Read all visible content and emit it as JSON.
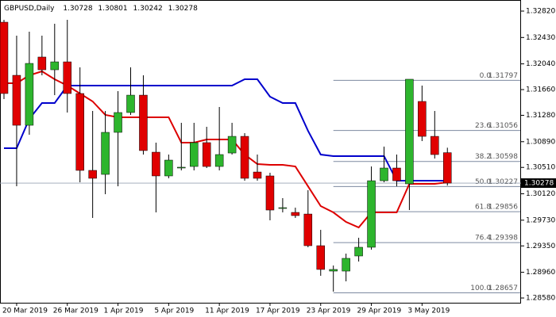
{
  "chart_data": {
    "type": "candlestick",
    "title": "GBPUSD,Daily",
    "categories": [
      null,
      "20 Mar 2019",
      null,
      null,
      null,
      "26 Mar 2019",
      null,
      null,
      null,
      "1 Apr 2019",
      null,
      null,
      null,
      "5 Apr 2019",
      null,
      null,
      null,
      "11 Apr 2019",
      null,
      null,
      null,
      "17 Apr 2019",
      null,
      null,
      null,
      "23 Apr 2019",
      null,
      null,
      null,
      "29 Apr 2019",
      null,
      null,
      null,
      "3 May 2019",
      null,
      null
    ],
    "open": [
      1.32656,
      1.31871,
      1.31133,
      1.32141,
      1.31953,
      1.3207,
      1.31602,
      1.30466,
      1.30407,
      1.31028,
      1.31321,
      1.31578,
      1.30735,
      1.30384,
      1.30501,
      1.30524,
      1.30876,
      1.30524,
      1.30723,
      1.30969,
      1.30442,
      1.30384,
      1.29904,
      1.29845,
      1.29821,
      1.29353,
      1.28978,
      1.28978,
      1.29201,
      1.2933,
      1.30313,
      1.30501,
      1.30267,
      1.31485,
      1.30969,
      1.30728
    ],
    "high": [
      1.32691,
      1.32457,
      1.32515,
      1.32457,
      1.32633,
      1.32691,
      1.31988,
      1.31344,
      1.31344,
      1.31637,
      1.31988,
      1.31871,
      1.30876,
      1.307,
      1.31169,
      1.31169,
      1.3111,
      1.31403,
      1.31169,
      1.31016,
      1.307,
      1.30431,
      1.30056,
      1.29915,
      1.30173,
      1.29587,
      1.2906,
      1.29236,
      1.2947,
      1.30524,
      1.30817,
      1.307,
      1.31813,
      1.31719,
      1.31344,
      1.30801
    ],
    "low": [
      1.3152,
      1.30231,
      1.30993,
      1.31871,
      1.31578,
      1.31321,
      1.3029,
      1.29763,
      1.30114,
      1.30231,
      1.31286,
      1.307,
      1.29845,
      1.30349,
      1.30466,
      1.30466,
      1.30501,
      1.30466,
      1.307,
      1.30313,
      1.30313,
      1.29728,
      1.29845,
      1.29763,
      1.2933,
      1.28908,
      1.28674,
      1.28826,
      1.29119,
      1.29294,
      1.3029,
      1.30231,
      1.2988,
      1.30899,
      1.30641,
      1.30242
    ],
    "close": [
      1.31602,
      1.31133,
      1.32047,
      1.31953,
      1.3207,
      1.31602,
      1.30466,
      1.30349,
      1.31028,
      1.31321,
      1.31578,
      1.30759,
      1.30384,
      1.30618,
      1.30513,
      1.30876,
      1.30524,
      1.307,
      1.30969,
      1.30349,
      1.30349,
      1.2988,
      1.29915,
      1.29798,
      1.29353,
      1.29002,
      1.29002,
      1.29166,
      1.2933,
      1.30313,
      1.30501,
      1.30313,
      1.31813,
      1.30969,
      1.307,
      1.30278
    ],
    "up_color": "#2db52d",
    "down_color": "#e00000",
    "lines": [
      {
        "color": "#0000cc",
        "values": [
          1.30794,
          1.30794,
          1.31227,
          1.31461,
          1.31461,
          1.31719,
          1.31719,
          1.31719,
          1.31719,
          1.31719,
          1.31719,
          1.31719,
          1.31719,
          1.31719,
          1.31719,
          1.31719,
          1.31719,
          1.31719,
          1.31719,
          1.31813,
          1.31813,
          1.31555,
          1.31461,
          1.31461,
          1.31051,
          1.307,
          1.30677,
          1.30677,
          1.30677,
          1.30677,
          1.30677,
          1.30313,
          1.30313,
          1.30313,
          1.30313,
          1.30313
        ]
      },
      {
        "color": "#dd0000",
        "values": [
          1.31754,
          1.31754,
          1.31871,
          1.3193,
          1.31813,
          1.31719,
          1.31602,
          1.31485,
          1.31286,
          1.31251,
          1.31251,
          1.31251,
          1.31251,
          1.31251,
          1.30876,
          1.30876,
          1.30923,
          1.30923,
          1.30923,
          1.307,
          1.30559,
          1.30548,
          1.30548,
          1.30524,
          1.30231,
          1.29939,
          1.29845,
          1.29704,
          1.29622,
          1.29845,
          1.29845,
          1.29845,
          1.30267,
          1.30267,
          1.30267,
          1.3029
        ]
      }
    ],
    "fib_levels": [
      {
        "level": "0.0",
        "price": 1.31797
      },
      {
        "level": "23.6",
        "price": 1.31056
      },
      {
        "level": "38.2",
        "price": 1.30598
      },
      {
        "level": "50.0",
        "price": 1.30227
      },
      {
        "level": "61.8",
        "price": 1.29856
      },
      {
        "level": "76.4",
        "price": 1.29398
      },
      {
        "level": "100.0",
        "price": 1.28657
      }
    ],
    "ylim": [
      1.2851,
      1.32984
    ],
    "yticks": [
      {
        "value": 1.3282,
        "label": "1.32820"
      },
      {
        "value": 1.3243,
        "label": "1.32430"
      },
      {
        "value": 1.3204,
        "label": "1.32040"
      },
      {
        "value": 1.3166,
        "label": "1.31660"
      },
      {
        "value": 1.3128,
        "label": "1.31280"
      },
      {
        "value": 1.3089,
        "label": "1.30890"
      },
      {
        "value": 1.3051,
        "label": "1.30510"
      },
      {
        "value": 1.3012,
        "label": "1.30120"
      },
      {
        "value": 1.2973,
        "label": "1.29730"
      },
      {
        "value": 1.2935,
        "label": "1.29350"
      },
      {
        "value": 1.2896,
        "label": "1.28960"
      },
      {
        "value": 1.2858,
        "label": "1.28580"
      }
    ]
  }
}
